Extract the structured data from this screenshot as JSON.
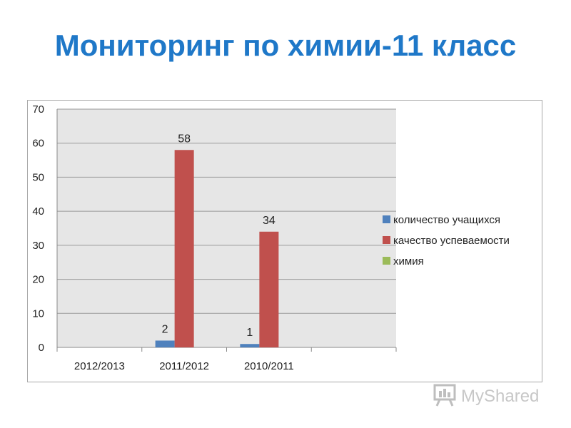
{
  "slide": {
    "title": "Мониторинг по химии-11 класс"
  },
  "watermark": {
    "text": "MyShared",
    "icon": "presentation-board-icon"
  },
  "chart_data": {
    "type": "bar",
    "title": "",
    "xlabel": "",
    "ylabel": "",
    "categories": [
      "2012/2013",
      "2011/2012",
      "2010/2011",
      ""
    ],
    "ylim": [
      0,
      70
    ],
    "yticks": [
      0,
      10,
      20,
      30,
      40,
      50,
      60,
      70
    ],
    "grid": true,
    "legend_position": "right",
    "series": [
      {
        "name": "количество учащихся",
        "color": "#4f81bd",
        "values": [
          null,
          2,
          1,
          null
        ],
        "labels": [
          "",
          "2",
          "1",
          ""
        ]
      },
      {
        "name": "качество успеваемости",
        "color": "#c0504d",
        "values": [
          null,
          58,
          34,
          null
        ],
        "labels": [
          "",
          "58",
          "34",
          ""
        ]
      },
      {
        "name": "химия",
        "color": "#9bbb59",
        "values": [
          null,
          null,
          null,
          null
        ],
        "labels": [
          "",
          "",
          "",
          ""
        ]
      }
    ]
  }
}
